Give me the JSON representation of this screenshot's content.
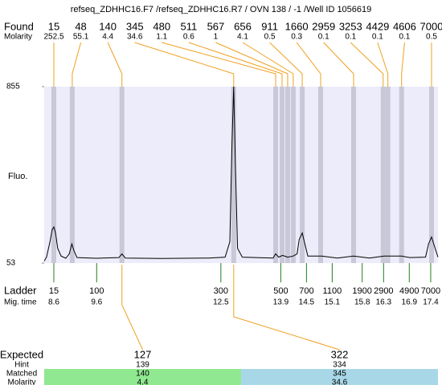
{
  "chart_data": {
    "type": "line",
    "title": "refseq_ZDHHC16.F7 /refseq_ZDHHC16.R7 / OVN 138 / -1 /Well ID 1056619",
    "found_label": "Found",
    "molarity_label": "Molarity",
    "y_label": "Fluo.",
    "ladder_label": "Ladder",
    "mig_time_label": "Mig. time",
    "found": [
      15,
      48,
      140,
      345,
      480,
      511,
      567,
      656,
      911,
      1660,
      2959,
      3253,
      4429,
      4606,
      7000
    ],
    "found_molarity": [
      252.5,
      55.1,
      4.4,
      34.6,
      1.1,
      0.6,
      1,
      4.1,
      0.5,
      0.3,
      0.1,
      0.1,
      0.1,
      0.1,
      0.5
    ],
    "found_time": [
      8.6,
      9.03,
      10.19,
      12.8,
      13.78,
      13.93,
      14.06,
      14.19,
      14.4,
      14.83,
      15.6,
      16.29,
      16.4,
      16.72,
      17.42
    ],
    "ladder": [
      15,
      100,
      300,
      500,
      700,
      1100,
      1900,
      2900,
      4900,
      7000
    ],
    "ladder_time": [
      8.6,
      9.6,
      12.5,
      13.9,
      14.5,
      15.1,
      15.8,
      16.3,
      16.9,
      17.4
    ],
    "xlim": [
      8.375,
      17.57
    ],
    "ylim": [
      53,
      855
    ],
    "yticks": [
      53,
      855
    ],
    "trace": {
      "x": [
        8.375,
        8.43,
        8.51,
        8.56,
        8.6,
        8.64,
        8.69,
        8.77,
        8.88,
        8.96,
        9.02,
        9.07,
        9.14,
        9.59,
        10.12,
        10.19,
        10.27,
        11.1,
        12.22,
        12.6,
        12.71,
        12.76,
        12.8,
        12.84,
        12.89,
        13.0,
        13.72,
        13.78,
        13.85,
        13.94,
        14.06,
        14.19,
        14.28,
        14.33,
        14.4,
        14.45,
        14.53,
        14.85,
        15.22,
        15.6,
        15.97,
        16.31,
        16.4,
        16.72,
        16.91,
        17.28,
        17.35,
        17.42,
        17.47,
        17.57
      ],
      "values": [
        62,
        80,
        150,
        205,
        217,
        190,
        120,
        85,
        75,
        95,
        140,
        110,
        78,
        75,
        78,
        95,
        76,
        74,
        76,
        80,
        150,
        600,
        855,
        500,
        120,
        80,
        76,
        95,
        80,
        88,
        80,
        85,
        95,
        160,
        190,
        150,
        85,
        85,
        76,
        85,
        76,
        85,
        85,
        85,
        78,
        80,
        140,
        172,
        140,
        80
      ]
    },
    "expected_labels": {
      "expected": "Expected",
      "hint": "Hint",
      "matched": "Matched",
      "molarity": "Molarity"
    },
    "expected": [
      {
        "expected": 127,
        "hint": 139,
        "matched": 140,
        "molarity": 4.4,
        "color": "#90e890"
      },
      {
        "expected": 322,
        "hint": 334,
        "matched": 345,
        "molarity": 34.6,
        "color": "#a8d8e8"
      }
    ],
    "trace_color": "#000000",
    "plot_color": "#ececfa",
    "band_color": "#c8c8d8",
    "link_color": "#f0a020",
    "ladder_color": "#208020"
  }
}
